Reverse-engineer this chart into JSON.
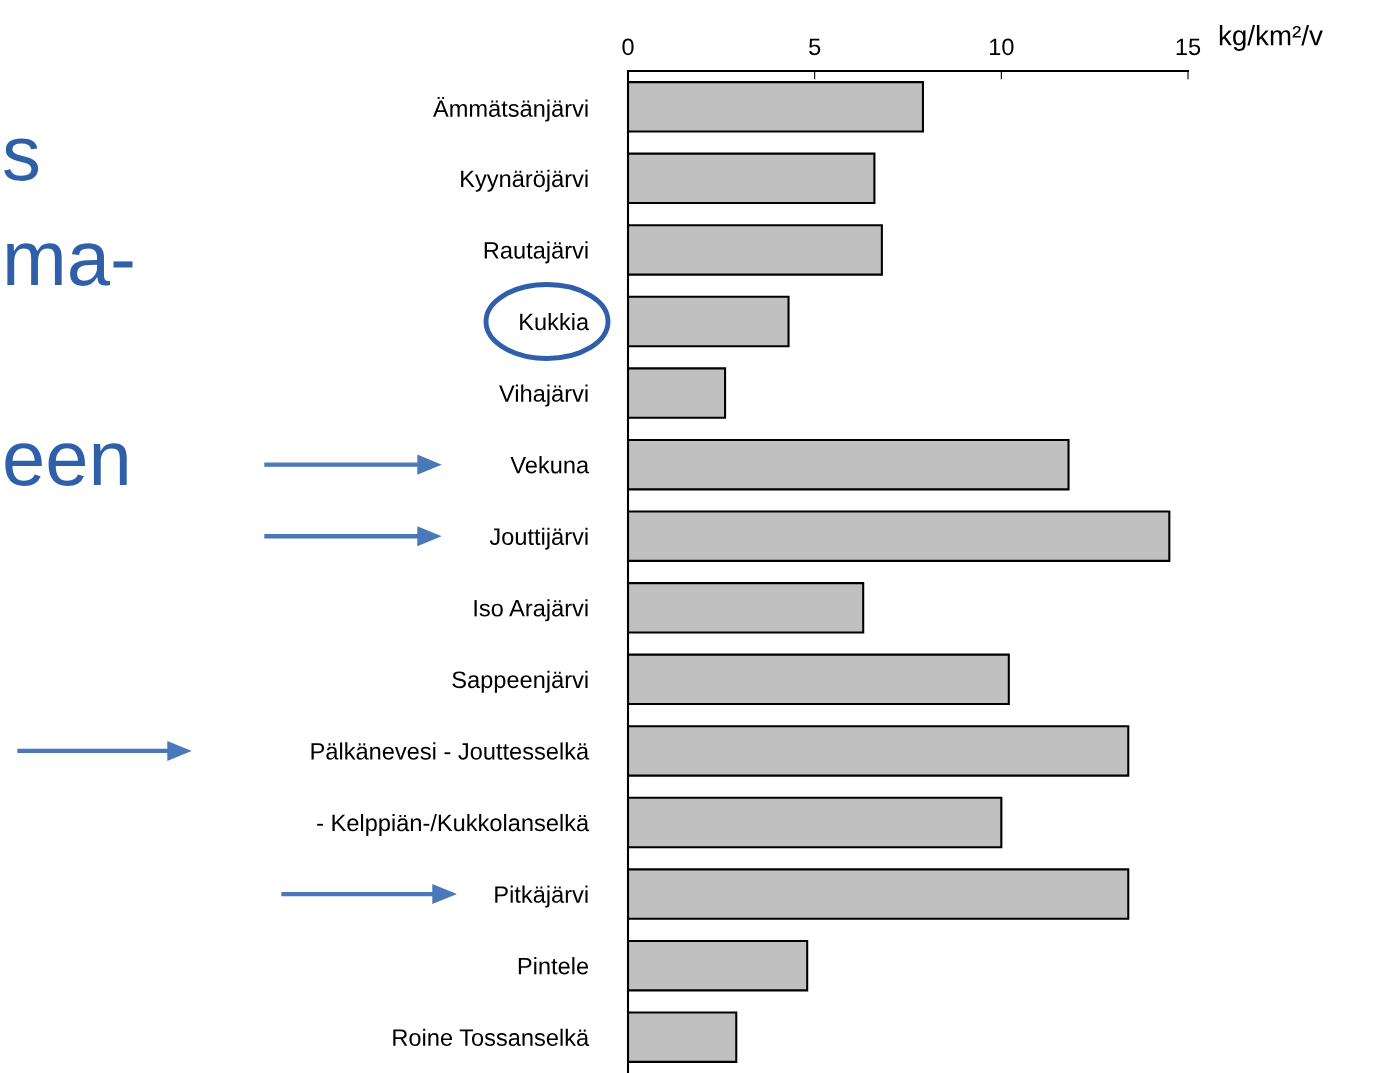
{
  "chart_data": {
    "type": "bar",
    "orientation": "horizontal",
    "xlabel": "kg/km²/v",
    "categories": [
      "Ämmätsänjärvi",
      "Kyynäröjärvi",
      "Rautajärvi",
      "Kukkia",
      "Vihajärvi",
      "Vekuna",
      "Jouttijärvi",
      "Iso Arajärvi",
      "Sappeenjärvi",
      "Pälkänevesi - Jouttesselkä",
      "- Kelppiän-/Kukkolanselkä",
      "Pitkäjärvi",
      "Pintele",
      "Roine Tossanselkä"
    ],
    "values": [
      7.9,
      6.6,
      6.8,
      4.3,
      2.6,
      11.8,
      14.5,
      6.3,
      10.2,
      13.4,
      10.0,
      13.4,
      4.8,
      2.9
    ],
    "color": "#c0c0c0",
    "xlim": [
      0,
      15
    ],
    "xticks": [
      0,
      5,
      10,
      15
    ],
    "grid": false,
    "annotations": [
      "s",
      "ma-",
      "een"
    ]
  }
}
